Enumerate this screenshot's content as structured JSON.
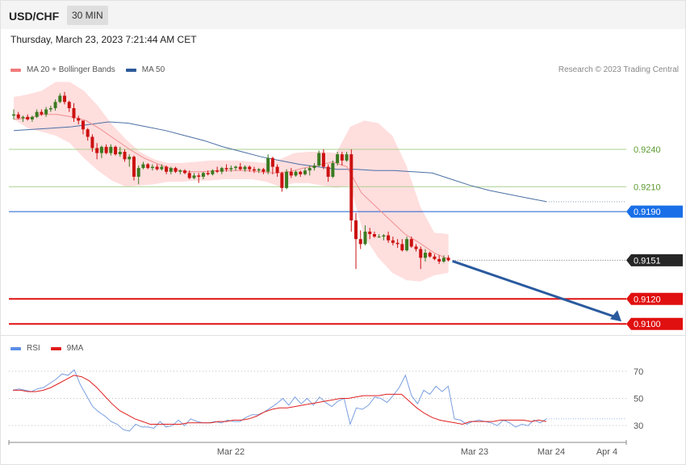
{
  "header": {
    "symbol": "USD/CHF",
    "timeframe": "30 MIN"
  },
  "datetime": "Thursday, March 23, 2023 7:21:44 AM CET",
  "legend_main": [
    {
      "label": "MA 20 + Bollinger Bands",
      "color": "#f07b7b"
    },
    {
      "label": "MA 50",
      "color": "#2d5a9a"
    }
  ],
  "credit": "Research © 2023 Trading Central",
  "legend_rsi": [
    {
      "label": "RSI",
      "color": "#5b8ee6"
    },
    {
      "label": "9MA",
      "color": "#e01b1b"
    }
  ],
  "colors": {
    "up": "#3a7a21",
    "down": "#cc1111",
    "band": "#ffd8d8",
    "ma50": "#4a6fa5",
    "ma20": "#f09090",
    "arrow": "#2a5a9e"
  },
  "chart_data": [
    {
      "type": "candlestick",
      "ylim": [
        0.9093,
        0.9295
      ],
      "x_ticks": [
        "Mar 22",
        "Mar 23",
        "Mar 24",
        "Apr 4"
      ],
      "candles": [
        [
          0.9267,
          0.9272,
          0.9264,
          0.9268
        ],
        [
          0.9268,
          0.927,
          0.9264,
          0.9265
        ],
        [
          0.9265,
          0.9267,
          0.9262,
          0.9266
        ],
        [
          0.9266,
          0.9268,
          0.9263,
          0.9264
        ],
        [
          0.9264,
          0.9267,
          0.9262,
          0.9266
        ],
        [
          0.9266,
          0.9272,
          0.9265,
          0.927
        ],
        [
          0.927,
          0.9272,
          0.9267,
          0.9268
        ],
        [
          0.9268,
          0.9274,
          0.9266,
          0.9272
        ],
        [
          0.9272,
          0.9275,
          0.927,
          0.9273
        ],
        [
          0.9273,
          0.928,
          0.9271,
          0.9278
        ],
        [
          0.9278,
          0.9285,
          0.9277,
          0.9283
        ],
        [
          0.9283,
          0.9286,
          0.9276,
          0.9278
        ],
        [
          0.9278,
          0.9279,
          0.927,
          0.9273
        ],
        [
          0.9273,
          0.9277,
          0.9262,
          0.9265
        ],
        [
          0.9265,
          0.9267,
          0.926,
          0.9263
        ],
        [
          0.9263,
          0.9263,
          0.9252,
          0.9256
        ],
        [
          0.9256,
          0.9257,
          0.9247,
          0.925
        ],
        [
          0.925,
          0.9252,
          0.9238,
          0.9241
        ],
        [
          0.9241,
          0.9245,
          0.9232,
          0.9237
        ],
        [
          0.9237,
          0.9243,
          0.9233,
          0.9242
        ],
        [
          0.9242,
          0.9244,
          0.9236,
          0.9237
        ],
        [
          0.9237,
          0.9244,
          0.9235,
          0.9242
        ],
        [
          0.9242,
          0.9243,
          0.9235,
          0.9236
        ],
        [
          0.9236,
          0.9242,
          0.9234,
          0.9238
        ],
        [
          0.9238,
          0.924,
          0.923,
          0.9232
        ],
        [
          0.9232,
          0.9236,
          0.9226,
          0.9234
        ],
        [
          0.9234,
          0.9235,
          0.9215,
          0.9218
        ],
        [
          0.9218,
          0.9227,
          0.9212,
          0.9225
        ],
        [
          0.9225,
          0.923,
          0.9224,
          0.9228
        ],
        [
          0.9228,
          0.9229,
          0.9224,
          0.9225
        ],
        [
          0.9225,
          0.9228,
          0.9223,
          0.9226
        ],
        [
          0.9226,
          0.9228,
          0.9223,
          0.9224
        ],
        [
          0.9224,
          0.9228,
          0.9223,
          0.9226
        ],
        [
          0.9226,
          0.9227,
          0.922,
          0.9222
        ],
        [
          0.9222,
          0.9226,
          0.922,
          0.9225
        ],
        [
          0.9225,
          0.9226,
          0.9221,
          0.9222
        ],
        [
          0.9222,
          0.9224,
          0.922,
          0.9223
        ],
        [
          0.9223,
          0.9224,
          0.922,
          0.9221
        ],
        [
          0.9221,
          0.9223,
          0.9216,
          0.9217
        ],
        [
          0.9217,
          0.9221,
          0.9216,
          0.9219
        ],
        [
          0.9219,
          0.9221,
          0.9213,
          0.9218
        ],
        [
          0.9218,
          0.9222,
          0.9216,
          0.9221
        ],
        [
          0.9221,
          0.9223,
          0.9219,
          0.922
        ],
        [
          0.922,
          0.9224,
          0.9219,
          0.9223
        ],
        [
          0.9223,
          0.9226,
          0.9221,
          0.9222
        ],
        [
          0.9222,
          0.9226,
          0.922,
          0.9225
        ],
        [
          0.9225,
          0.9228,
          0.9222,
          0.9224
        ],
        [
          0.9224,
          0.9227,
          0.9222,
          0.9225
        ],
        [
          0.9225,
          0.9227,
          0.9223,
          0.9226
        ],
        [
          0.9226,
          0.9229,
          0.9223,
          0.9224
        ],
        [
          0.9224,
          0.9227,
          0.9222,
          0.9226
        ],
        [
          0.9226,
          0.9227,
          0.9222,
          0.9224
        ],
        [
          0.9224,
          0.9226,
          0.9221,
          0.9223
        ],
        [
          0.9223,
          0.9225,
          0.9221,
          0.9224
        ],
        [
          0.9224,
          0.9225,
          0.922,
          0.9222
        ],
        [
          0.9222,
          0.9236,
          0.922,
          0.9233
        ],
        [
          0.9233,
          0.9234,
          0.922,
          0.9226
        ],
        [
          0.9226,
          0.9228,
          0.9218,
          0.9221
        ],
        [
          0.9221,
          0.9222,
          0.9206,
          0.9209
        ],
        [
          0.9209,
          0.9224,
          0.9208,
          0.9222
        ],
        [
          0.9222,
          0.9225,
          0.9217,
          0.9219
        ],
        [
          0.9219,
          0.9223,
          0.9218,
          0.9222
        ],
        [
          0.9222,
          0.9223,
          0.9218,
          0.922
        ],
        [
          0.922,
          0.9225,
          0.9219,
          0.9223
        ],
        [
          0.9223,
          0.9227,
          0.9219,
          0.9225
        ],
        [
          0.9225,
          0.9229,
          0.9223,
          0.9227
        ],
        [
          0.9227,
          0.9239,
          0.9226,
          0.9237
        ],
        [
          0.9237,
          0.924,
          0.9224,
          0.9226
        ],
        [
          0.9226,
          0.9228,
          0.9214,
          0.9218
        ],
        [
          0.9218,
          0.9231,
          0.9217,
          0.9229
        ],
        [
          0.9229,
          0.9238,
          0.9227,
          0.9236
        ],
        [
          0.9236,
          0.9238,
          0.9227,
          0.9231
        ],
        [
          0.9231,
          0.9238,
          0.923,
          0.9236
        ],
        [
          0.9236,
          0.924,
          0.9174,
          0.9183
        ],
        [
          0.9183,
          0.9189,
          0.9144,
          0.9168
        ],
        [
          0.9168,
          0.9175,
          0.916,
          0.9164
        ],
        [
          0.9164,
          0.9179,
          0.9163,
          0.9174
        ],
        [
          0.9174,
          0.9177,
          0.9168,
          0.9172
        ],
        [
          0.9172,
          0.9174,
          0.9169,
          0.917
        ],
        [
          0.917,
          0.9172,
          0.9169,
          0.917
        ],
        [
          0.917,
          0.9172,
          0.9167,
          0.9171
        ],
        [
          0.9171,
          0.9174,
          0.9165,
          0.9167
        ],
        [
          0.9167,
          0.917,
          0.9163,
          0.9165
        ],
        [
          0.9165,
          0.9168,
          0.9161,
          0.9164
        ],
        [
          0.9164,
          0.9168,
          0.9158,
          0.9159
        ],
        [
          0.9159,
          0.917,
          0.9158,
          0.9168
        ],
        [
          0.9168,
          0.917,
          0.9161,
          0.9162
        ],
        [
          0.9162,
          0.9164,
          0.9158,
          0.916
        ],
        [
          0.916,
          0.9162,
          0.9144,
          0.9153
        ],
        [
          0.9153,
          0.916,
          0.915,
          0.9157
        ],
        [
          0.9157,
          0.9158,
          0.9153,
          0.9154
        ],
        [
          0.9154,
          0.9156,
          0.9151,
          0.9152
        ],
        [
          0.9152,
          0.9155,
          0.9148,
          0.915
        ],
        [
          0.915,
          0.9155,
          0.9149,
          0.9153
        ],
        [
          0.9153,
          0.9155,
          0.915,
          0.9151
        ]
      ],
      "ma50": [
        0.9255,
        0.9256,
        0.9257,
        0.9258,
        0.926,
        0.9262,
        0.9261,
        0.9258,
        0.9255,
        0.9251,
        0.9247,
        0.9242,
        0.9238,
        0.9234,
        0.9231,
        0.9228,
        0.9226,
        0.9224,
        0.9224,
        0.9223,
        0.9223,
        0.9222,
        0.9221,
        0.9216,
        0.9211,
        0.9207,
        0.9204,
        0.9201,
        0.9198
      ],
      "ma20": [
        0.9264,
        0.9265,
        0.9268,
        0.9268,
        0.9266,
        0.9263,
        0.9256,
        0.9248,
        0.924,
        0.9233,
        0.9228,
        0.9224,
        0.9222,
        0.9222,
        0.9223,
        0.9223,
        0.9223,
        0.9222,
        0.9221,
        0.9222,
        0.9225,
        0.9227,
        0.923,
        0.9226,
        0.9205,
        0.9194,
        0.9183,
        0.9172,
        0.9165,
        0.9157,
        0.9152
      ],
      "bb_upper": [
        0.9282,
        0.9284,
        0.9287,
        0.9294,
        0.9294,
        0.9287,
        0.9275,
        0.926,
        0.9248,
        0.9238,
        0.9232,
        0.9229,
        0.9229,
        0.923,
        0.9231,
        0.9231,
        0.9231,
        0.923,
        0.9229,
        0.9232,
        0.9237,
        0.9238,
        0.9238,
        0.9237,
        0.9258,
        0.9263,
        0.9261,
        0.9251,
        0.9227,
        0.9194,
        0.9173,
        0.9172
      ],
      "bb_lower": [
        0.9264,
        0.9257,
        0.9254,
        0.9251,
        0.9245,
        0.9233,
        0.9223,
        0.9215,
        0.921,
        0.9211,
        0.9212,
        0.9214,
        0.9214,
        0.9215,
        0.9215,
        0.9216,
        0.9216,
        0.9216,
        0.9214,
        0.921,
        0.9213,
        0.9213,
        0.9211,
        0.9209,
        0.9211,
        0.917,
        0.9153,
        0.9141,
        0.9135,
        0.9134,
        0.9139,
        0.9141
      ],
      "levels": [
        {
          "value": 0.924,
          "label": "0.9240",
          "kind": "resistance"
        },
        {
          "value": 0.921,
          "label": "0.9210",
          "kind": "resistance"
        },
        {
          "value": 0.919,
          "label": "0.9190",
          "kind": "pivot"
        },
        {
          "value": 0.9151,
          "label": "0.9151",
          "kind": "last"
        },
        {
          "value": 0.912,
          "label": "0.9120",
          "kind": "support"
        },
        {
          "value": 0.91,
          "label": "0.9100",
          "kind": "support"
        }
      ],
      "forecast_arrow": {
        "from": 0.9151,
        "to": 0.91
      }
    },
    {
      "type": "line",
      "ylim": [
        20,
        80
      ],
      "y_ticks": [
        70,
        50,
        30
      ],
      "series": [
        {
          "name": "RSI",
          "values": [
            56,
            57,
            56,
            55,
            57,
            58,
            61,
            64,
            68,
            67,
            71,
            60,
            52,
            44,
            40,
            37,
            33,
            31,
            27,
            26,
            31,
            29,
            29,
            28,
            33,
            29,
            30,
            34,
            30,
            35,
            33,
            32,
            32,
            33,
            32,
            34,
            33,
            33,
            36,
            38,
            38,
            40,
            43,
            46,
            50,
            45,
            51,
            46,
            50,
            45,
            51,
            47,
            44,
            48,
            50,
            31,
            43,
            42,
            45,
            51,
            50,
            47,
            52,
            58,
            67,
            52,
            46,
            56,
            53,
            59,
            55,
            59,
            35,
            34,
            31,
            33,
            34,
            33,
            32,
            30,
            34,
            32,
            29,
            31,
            30,
            34,
            32,
            35
          ]
        },
        {
          "name": "9MA",
          "values": [
            56,
            56,
            55,
            55,
            56,
            58,
            61,
            64,
            67,
            66,
            63,
            58,
            52,
            46,
            41,
            38,
            35,
            33,
            31,
            31,
            31,
            31,
            31,
            32,
            32,
            32,
            32,
            33,
            33,
            34,
            34,
            35,
            37,
            40,
            42,
            43,
            43,
            44,
            45,
            46,
            47,
            48,
            49,
            50,
            50,
            51,
            52,
            52,
            52,
            53,
            53,
            53,
            48,
            43,
            39,
            36,
            34,
            33,
            32,
            31,
            33,
            33,
            33,
            33,
            34,
            34,
            34,
            34,
            33,
            34,
            33
          ]
        }
      ]
    }
  ]
}
